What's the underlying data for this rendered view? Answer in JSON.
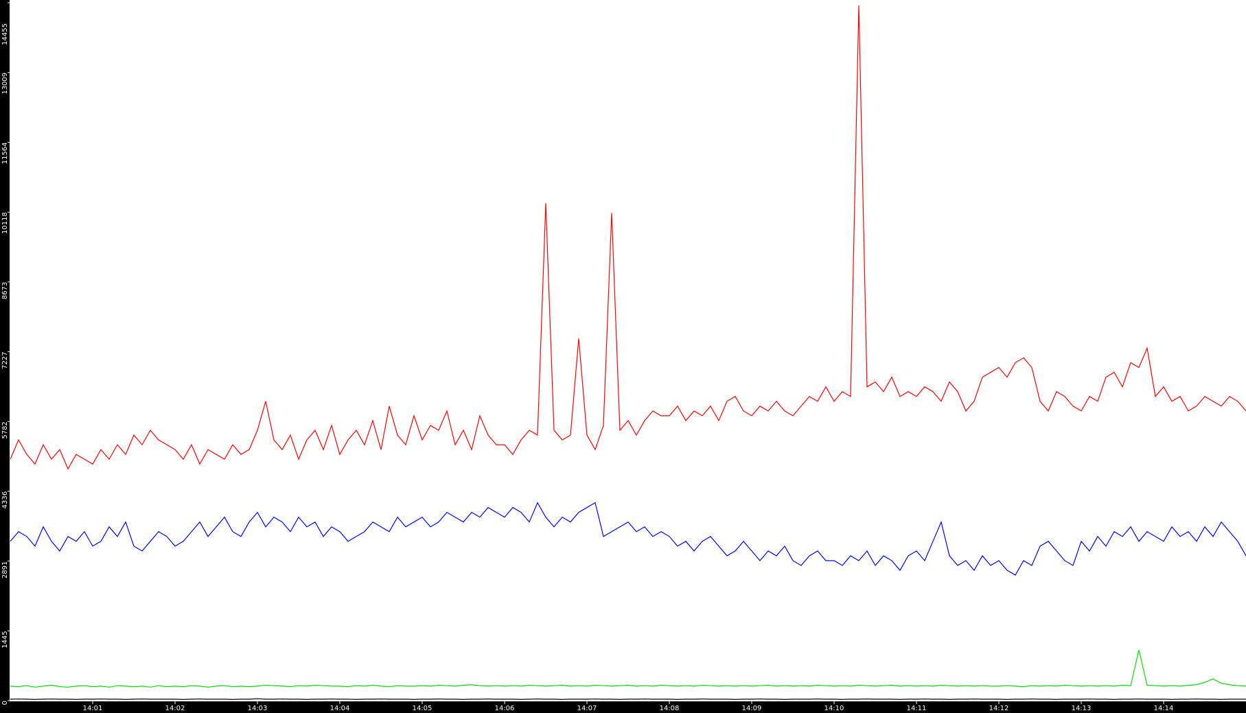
{
  "chart_data": {
    "type": "line",
    "xlim": [
      840,
      855
    ],
    "xticks": [
      {
        "value": 841,
        "label": "14:01"
      },
      {
        "value": 842,
        "label": "14:02"
      },
      {
        "value": 843,
        "label": "14:03"
      },
      {
        "value": 844,
        "label": "14:04"
      },
      {
        "value": 845,
        "label": "14:05"
      },
      {
        "value": 846,
        "label": "14:06"
      },
      {
        "value": 847,
        "label": "14:07"
      },
      {
        "value": 848,
        "label": "14:08"
      },
      {
        "value": 849,
        "label": "14:09"
      },
      {
        "value": 850,
        "label": "14:10"
      },
      {
        "value": 851,
        "label": "14:11"
      },
      {
        "value": 852,
        "label": "14:12"
      },
      {
        "value": 853,
        "label": "14:13"
      },
      {
        "value": 854,
        "label": "14:14"
      }
    ],
    "ylim": [
      0,
      14455
    ],
    "yticks": [
      0,
      1445,
      2891,
      4336,
      5782,
      7227,
      8673,
      10118,
      11564,
      13009,
      14455
    ],
    "x": [
      840,
      840.1,
      840.2,
      840.3,
      840.4,
      840.5,
      840.6,
      840.7,
      840.8,
      840.9,
      841,
      841.1,
      841.2,
      841.3,
      841.4,
      841.5,
      841.6,
      841.7,
      841.8,
      841.9,
      842,
      842.1,
      842.2,
      842.3,
      842.4,
      842.5,
      842.6,
      842.7,
      842.8,
      842.9,
      843,
      843.1,
      843.2,
      843.3,
      843.4,
      843.5,
      843.6,
      843.7,
      843.8,
      843.9,
      844,
      844.1,
      844.2,
      844.3,
      844.4,
      844.5,
      844.6,
      844.7,
      844.8,
      844.9,
      845,
      845.1,
      845.2,
      845.3,
      845.4,
      845.5,
      845.6,
      845.7,
      845.8,
      845.9,
      846,
      846.1,
      846.2,
      846.3,
      846.4,
      846.5,
      846.6,
      846.7,
      846.8,
      846.9,
      847,
      847.1,
      847.2,
      847.3,
      847.4,
      847.5,
      847.6,
      847.7,
      847.8,
      847.9,
      848,
      848.1,
      848.2,
      848.3,
      848.4,
      848.5,
      848.6,
      848.7,
      848.8,
      848.9,
      849,
      849.1,
      849.2,
      849.3,
      849.4,
      849.5,
      849.6,
      849.7,
      849.8,
      849.9,
      850,
      850.1,
      850.2,
      850.3,
      850.4,
      850.5,
      850.6,
      850.7,
      850.8,
      850.9,
      851,
      851.1,
      851.2,
      851.3,
      851.4,
      851.5,
      851.6,
      851.7,
      851.8,
      851.9,
      852,
      852.1,
      852.2,
      852.3,
      852.4,
      852.5,
      852.6,
      852.7,
      852.8,
      852.9,
      853,
      853.1,
      853.2,
      853.3,
      853.4,
      853.5,
      853.6,
      853.7,
      853.8,
      853.9,
      854,
      854.1,
      854.2,
      854.3,
      854.4,
      854.5,
      854.6,
      854.7,
      854.8,
      854.9,
      855
    ],
    "series": [
      {
        "color": "#ff0000",
        "values": [
          5000,
          5400,
          5100,
          4900,
          5300,
          5000,
          5200,
          4800,
          5100,
          5000,
          4900,
          5200,
          5000,
          5300,
          5100,
          5500,
          5300,
          5600,
          5400,
          5300,
          5200,
          5000,
          5300,
          4900,
          5200,
          5100,
          5000,
          5300,
          5100,
          5200,
          5600,
          6200,
          5400,
          5200,
          5500,
          5000,
          5400,
          5600,
          5200,
          5700,
          5100,
          5400,
          5600,
          5300,
          5800,
          5200,
          6100,
          5500,
          5300,
          5900,
          5400,
          5700,
          5600,
          6000,
          5300,
          5600,
          5200,
          5900,
          5500,
          5300,
          5300,
          5100,
          5400,
          5600,
          5500,
          10300,
          5600,
          5400,
          5500,
          7500,
          5500,
          5200,
          5700,
          10100,
          5600,
          5800,
          5500,
          5800,
          6000,
          5900,
          5900,
          6100,
          5800,
          6000,
          5900,
          6100,
          5800,
          6200,
          6300,
          6000,
          5900,
          6100,
          6000,
          6200,
          6000,
          5900,
          6100,
          6300,
          6200,
          6500,
          6200,
          6400,
          6300,
          14400,
          6500,
          6600,
          6400,
          6700,
          6300,
          6400,
          6300,
          6500,
          6400,
          6200,
          6600,
          6400,
          6000,
          6200,
          6700,
          6800,
          6900,
          6700,
          7000,
          7100,
          6900,
          6200,
          6000,
          6400,
          6300,
          6100,
          6000,
          6300,
          6200,
          6700,
          6800,
          6500,
          7000,
          6900,
          7300,
          6300,
          6500,
          6200,
          6300,
          6000,
          6100,
          6300,
          6200,
          6100,
          6300,
          6200,
          6000
        ]
      },
      {
        "color": "#0000ff",
        "values": [
          3300,
          3500,
          3400,
          3200,
          3600,
          3300,
          3100,
          3400,
          3300,
          3500,
          3200,
          3300,
          3600,
          3400,
          3700,
          3200,
          3100,
          3300,
          3500,
          3400,
          3200,
          3300,
          3500,
          3700,
          3400,
          3600,
          3800,
          3500,
          3400,
          3700,
          3900,
          3600,
          3800,
          3700,
          3500,
          3800,
          3600,
          3700,
          3400,
          3600,
          3500,
          3300,
          3400,
          3500,
          3700,
          3600,
          3500,
          3800,
          3600,
          3700,
          3800,
          3600,
          3700,
          3900,
          3800,
          3700,
          3900,
          3800,
          4000,
          3900,
          3800,
          4000,
          3900,
          3700,
          4100,
          3800,
          3600,
          3800,
          3700,
          3900,
          4000,
          4100,
          3400,
          3500,
          3600,
          3700,
          3500,
          3600,
          3400,
          3500,
          3400,
          3200,
          3300,
          3100,
          3300,
          3400,
          3200,
          3000,
          3100,
          3300,
          3100,
          2900,
          3100,
          3000,
          3200,
          2900,
          2800,
          3000,
          3100,
          2900,
          2900,
          2800,
          3000,
          2900,
          3100,
          2800,
          3000,
          2900,
          2700,
          3000,
          3100,
          2900,
          3300,
          3700,
          3000,
          2800,
          2900,
          2700,
          3000,
          2800,
          2900,
          2700,
          2600,
          2900,
          2800,
          3200,
          3300,
          3100,
          2900,
          2800,
          3300,
          3100,
          3400,
          3200,
          3500,
          3400,
          3600,
          3300,
          3500,
          3400,
          3300,
          3600,
          3400,
          3500,
          3300,
          3600,
          3400,
          3700,
          3500,
          3300,
          3000
        ]
      },
      {
        "color": "#00e000",
        "values": [
          300,
          290,
          310,
          280,
          300,
          320,
          290,
          280,
          300,
          310,
          290,
          300,
          280,
          310,
          300,
          290,
          300,
          280,
          310,
          290,
          300,
          290,
          310,
          300,
          280,
          300,
          310,
          290,
          300,
          290,
          300,
          320,
          310,
          300,
          290,
          310,
          300,
          320,
          310,
          300,
          300,
          290,
          310,
          300,
          320,
          300,
          290,
          310,
          300,
          300,
          310,
          300,
          320,
          310,
          300,
          320,
          330,
          310,
          300,
          310,
          300,
          310,
          300,
          320,
          310,
          300,
          310,
          320,
          300,
          310,
          300,
          320,
          310,
          300,
          310,
          320,
          300,
          310,
          300,
          320,
          310,
          300,
          310,
          300,
          320,
          310,
          300,
          310,
          300,
          310,
          300,
          310,
          320,
          300,
          310,
          300,
          310,
          300,
          320,
          310,
          300,
          310,
          300,
          320,
          310,
          300,
          310,
          320,
          300,
          310,
          300,
          310,
          300,
          320,
          310,
          300,
          310,
          300,
          310,
          300,
          300,
          310,
          300,
          290,
          310,
          300,
          310,
          300,
          320,
          310,
          300,
          310,
          300,
          310,
          300,
          320,
          310,
          1050,
          320,
          310,
          300,
          310,
          300,
          320,
          330,
          380,
          450,
          360,
          330,
          310,
          300
        ]
      },
      {
        "color": "#000000",
        "values": [
          30,
          35,
          30,
          25,
          30,
          35,
          30,
          30,
          25,
          30,
          30,
          35,
          30,
          30,
          25,
          30,
          35,
          30,
          30,
          30,
          30,
          25,
          30,
          35,
          30,
          30,
          30,
          25,
          30,
          30,
          40,
          30,
          30,
          35,
          30,
          30,
          25,
          30,
          30,
          35,
          30,
          30,
          25,
          30,
          30,
          35,
          30,
          30,
          30,
          25,
          30,
          30,
          35,
          30,
          30,
          25,
          30,
          30,
          35,
          30,
          30,
          30,
          25,
          30,
          35,
          30,
          30,
          25,
          30,
          30,
          30,
          35,
          30,
          30,
          25,
          30,
          30,
          35,
          30,
          30,
          30,
          25,
          30,
          30,
          35,
          30,
          30,
          30,
          25,
          30,
          30,
          35,
          30,
          30,
          25,
          30,
          30,
          30,
          35,
          30,
          30,
          25,
          30,
          30,
          35,
          30,
          30,
          30,
          25,
          30,
          30,
          35,
          30,
          30,
          25,
          30,
          30,
          35,
          30,
          30,
          30,
          25,
          30,
          30,
          35,
          30,
          30,
          25,
          30,
          30,
          30,
          35,
          30,
          30,
          25,
          30,
          30,
          35,
          30,
          30,
          30,
          25,
          30,
          30,
          35,
          30,
          30,
          25,
          30,
          30,
          30
        ]
      }
    ]
  }
}
